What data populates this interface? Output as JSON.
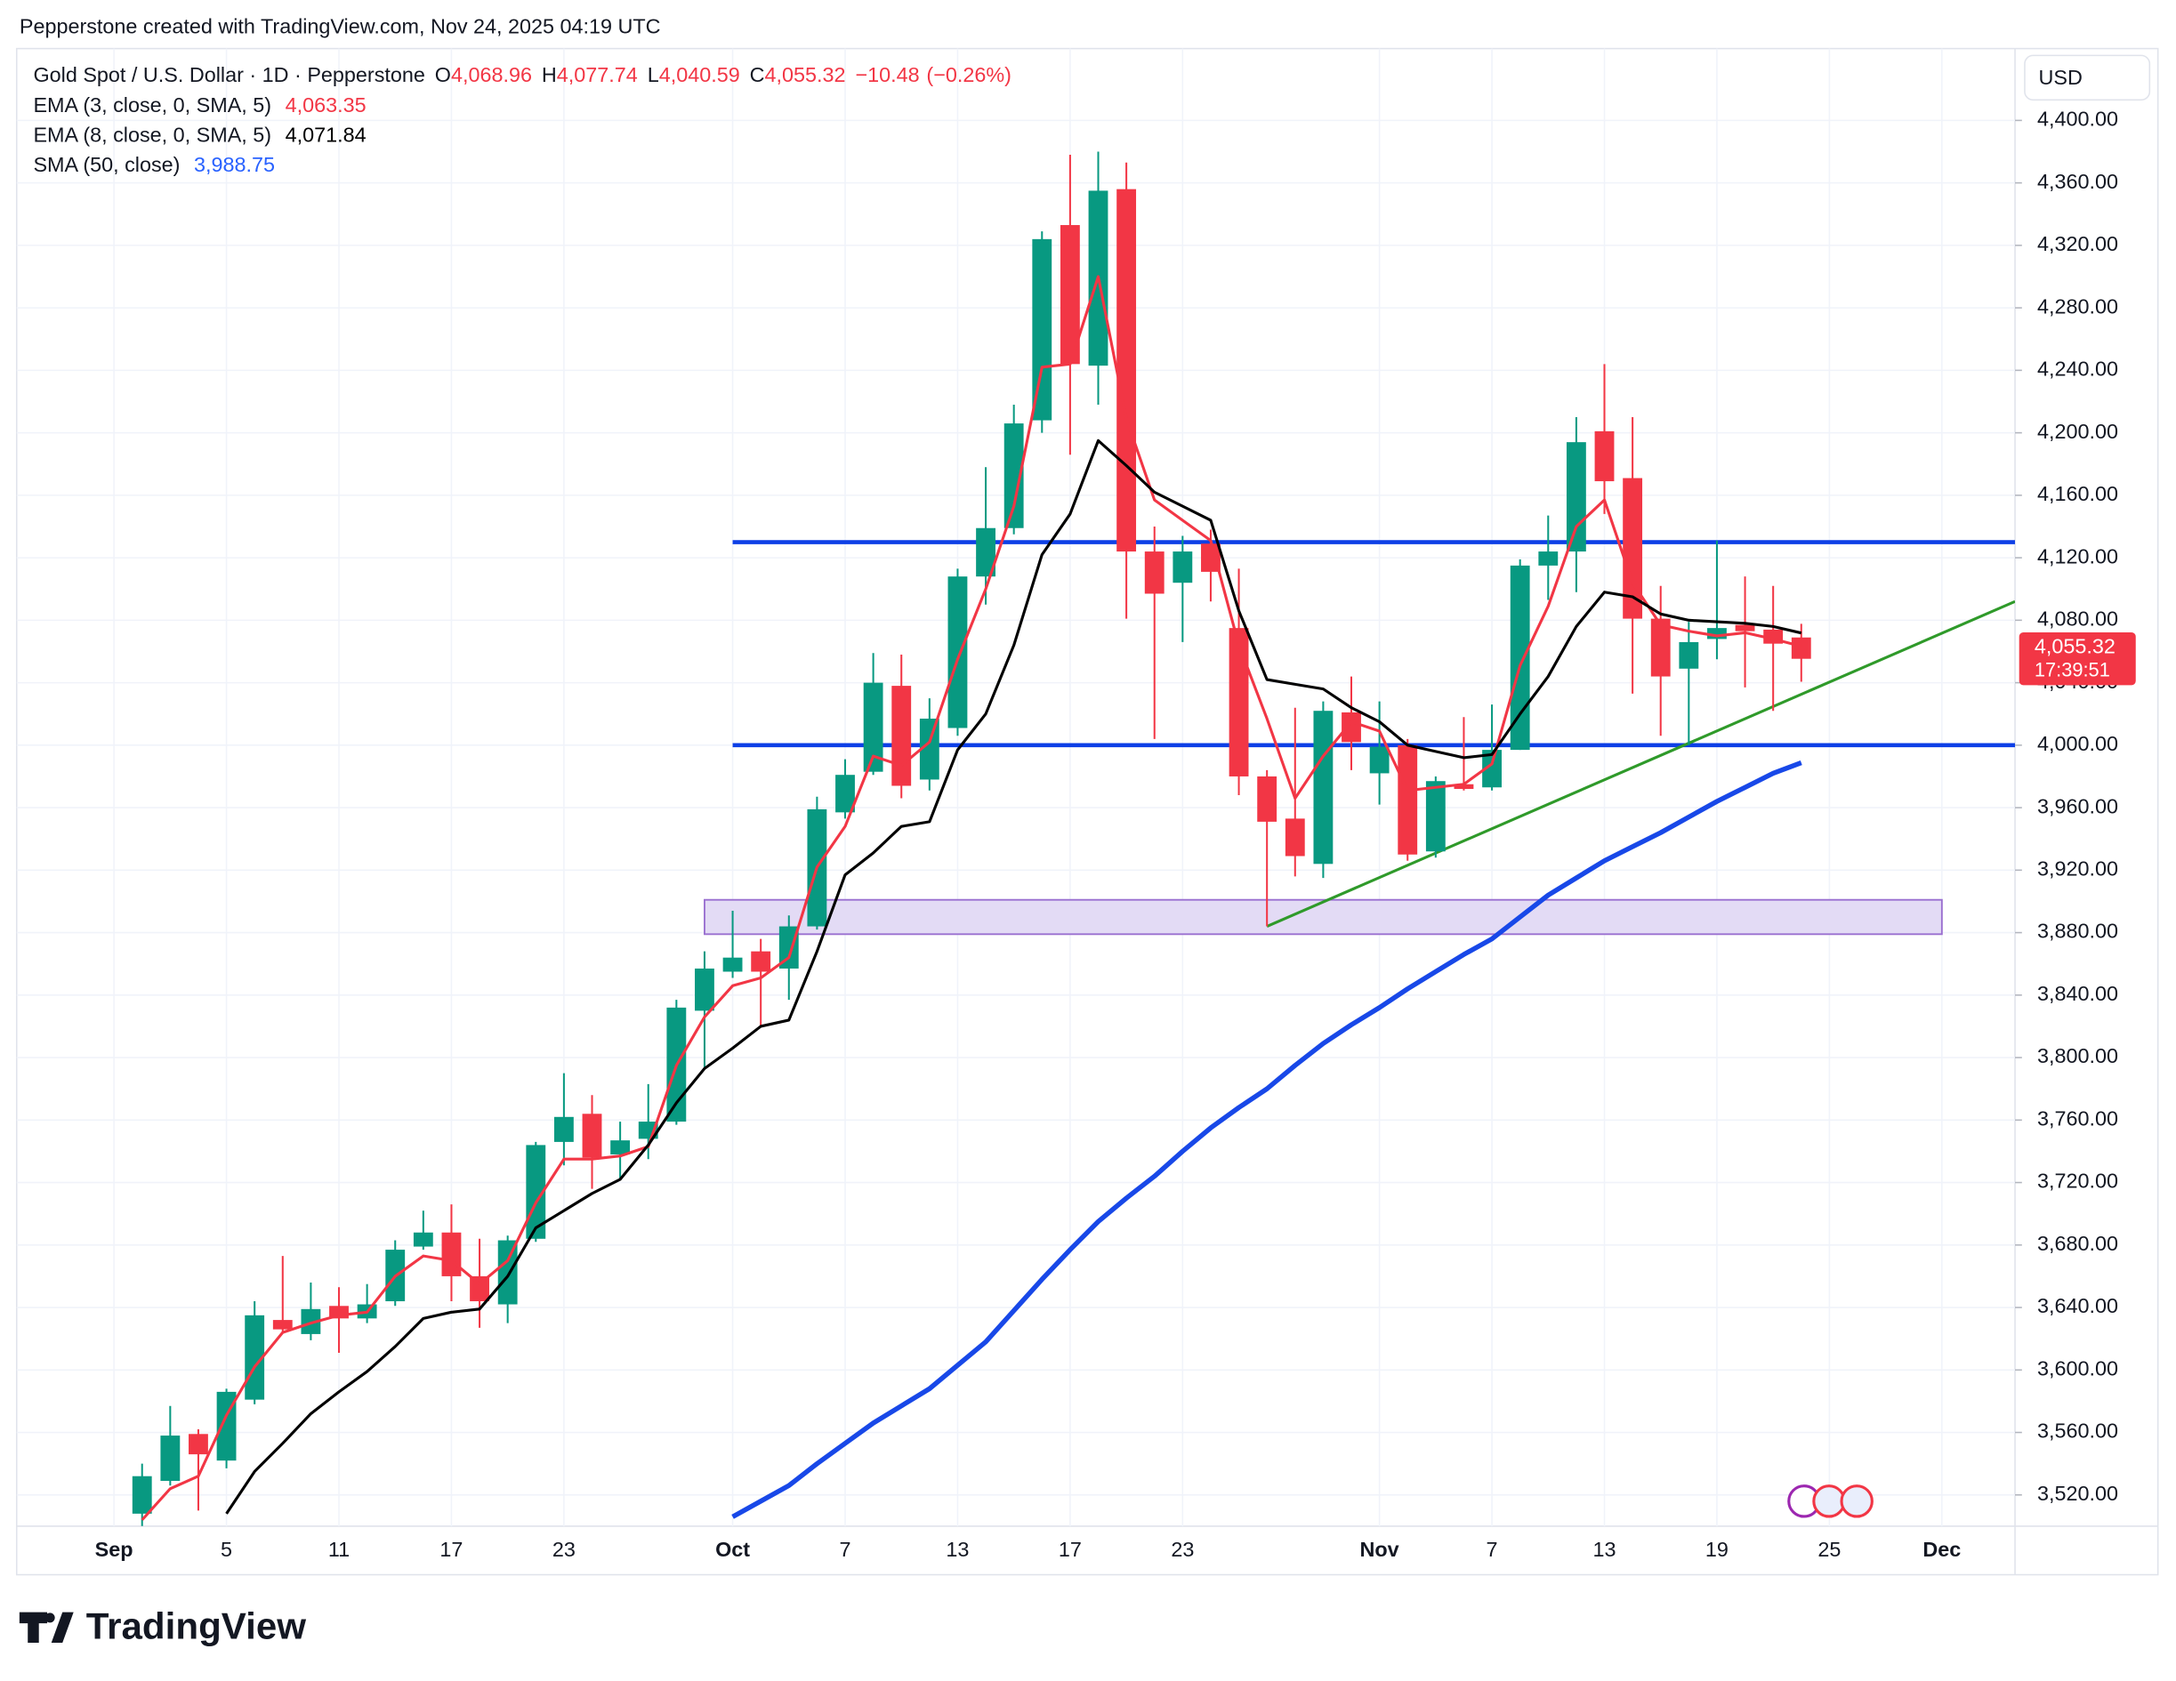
{
  "header": "Pepperstone created with TradingView.com, Nov 24, 2025 04:19 UTC",
  "footer": "TradingView",
  "chart_data": {
    "type": "candlestick",
    "title": "Gold Spot / U.S. Dollar · 1D · Pepperstone",
    "unit": "USD",
    "up_color": "#089981",
    "down_color": "#f23645",
    "ohlc_legend": [
      {
        "key": "O",
        "value": 4068.96,
        "label": "4,068.96"
      },
      {
        "key": "H",
        "value": 4077.74,
        "label": "4,077.74"
      },
      {
        "key": "L",
        "value": 4040.59,
        "label": "4,040.59"
      },
      {
        "key": "C",
        "value": 4055.32,
        "label": "4,055.32"
      }
    ],
    "change": {
      "value": -10.48,
      "label": "−10.48"
    },
    "change_pct": {
      "value": -0.26,
      "label": "(−0.26%)"
    },
    "categories": [
      null,
      null,
      null,
      null,
      null,
      null,
      null,
      null,
      null,
      null,
      null,
      null,
      null,
      null,
      null,
      null,
      null,
      null,
      null,
      null,
      null,
      null,
      null,
      null,
      null,
      null,
      null,
      null,
      null,
      null,
      null,
      null,
      null,
      null,
      null,
      null,
      null,
      null,
      null,
      null,
      null,
      null,
      null,
      null,
      null,
      null,
      null,
      null,
      null,
      null,
      null,
      null,
      null,
      null,
      null,
      null,
      null,
      null,
      null,
      null
    ],
    "open": [
      3508,
      3529,
      3559,
      3542,
      3581,
      3632,
      3623,
      3641,
      3633,
      3644,
      3679,
      3688,
      3660,
      3642,
      3684,
      3746,
      3764,
      3738,
      3748,
      3759,
      3830,
      3855,
      3868,
      3857,
      3884,
      3957,
      3983,
      4038,
      3978,
      4011,
      4108,
      4139,
      4208,
      4333,
      4243,
      4356,
      4124,
      4104,
      4129,
      4075,
      3980,
      3953,
      3924,
      4021,
      3982,
      4000,
      3932,
      3975,
      3973,
      3997,
      4115,
      4124,
      4201,
      4171,
      4081,
      4049,
      4068,
      4077,
      4074,
      4068.96
    ],
    "high": [
      3540,
      3577,
      3562,
      3588,
      3644,
      3673,
      3656,
      3653,
      3655,
      3683,
      3702,
      3706,
      3684,
      3686,
      3746,
      3790,
      3776,
      3759,
      3783,
      3837,
      3868,
      3894,
      3876,
      3891,
      3967,
      3991,
      4059,
      4058,
      4030,
      4113,
      4178,
      4218,
      4329,
      4378,
      4380,
      4373,
      4140,
      4134,
      4138,
      4113,
      3984,
      4024,
      4028,
      4044,
      4028,
      4004,
      3980,
      4018,
      4026,
      4119,
      4147,
      4210,
      4244,
      4210,
      4102,
      4079,
      4131,
      4108,
      4102,
      4077.74
    ],
    "low": [
      3500,
      3526,
      3510,
      3537,
      3578,
      3624,
      3619,
      3611,
      3630,
      3641,
      3677,
      3644,
      3627,
      3630,
      3682,
      3731,
      3716,
      3722,
      3735,
      3757,
      3793,
      3851,
      3820,
      3837,
      3882,
      3953,
      3981,
      3966,
      3971,
      4006,
      4090,
      4135,
      4200,
      4186,
      4218,
      4081,
      4004,
      4066,
      4092,
      3968,
      3884,
      3916,
      3915,
      3984,
      3962,
      3926,
      3928,
      3971,
      3971,
      3997,
      4093,
      4098,
      4148,
      4033,
      4006,
      4000,
      4055,
      4037,
      4022,
      4040.59
    ],
    "close": [
      3532,
      3558,
      3546,
      3586,
      3635,
      3626,
      3639,
      3633,
      3642,
      3677,
      3688,
      3660,
      3644,
      3683,
      3744,
      3762,
      3736,
      3747,
      3759,
      3832,
      3857,
      3864,
      3855,
      3884,
      3959,
      3981,
      4040,
      3974,
      4017,
      4108,
      4139,
      4206,
      4324,
      4244,
      4355,
      4124,
      4097,
      4124,
      4111,
      3980,
      3951,
      3929,
      4022,
      4002,
      3999,
      3930,
      3977,
      3972,
      3997,
      4115,
      4124,
      4194,
      4169,
      4081,
      4044,
      4066,
      4075,
      4073,
      4065,
      4055.32
    ],
    "series": [
      {
        "name": "EMA (3, close, 0, SMA, 5)",
        "color": "#f23645",
        "width": 2,
        "last": {
          "value": 4063.35,
          "label": "4,063.35"
        },
        "values": [
          3504,
          3524,
          3532,
          3571,
          3602,
          3624,
          3630,
          3635,
          3637,
          3660,
          3673,
          3670,
          3655,
          3670,
          3707,
          3735,
          3735,
          3737,
          3743,
          3795,
          3826,
          3846,
          3851,
          3864,
          3922,
          3948,
          3993,
          3987,
          4002,
          4055,
          4100,
          4153,
          4242,
          4244,
          4300,
          4209,
          4157,
          4144,
          4131,
          4064,
          4017,
          3966,
          3993,
          4015,
          4009,
          3971,
          3973,
          3975,
          3988,
          4051,
          4089,
          4140,
          4157,
          4104,
          4077,
          4073,
          4070,
          4072,
          4068,
          4063.35
        ]
      },
      {
        "name": "EMA (8, close, 0, SMA, 5)",
        "color": "#000000",
        "width": 2,
        "last": {
          "value": 4071.84,
          "label": "4,071.84"
        },
        "values": [
          null,
          null,
          null,
          3508,
          3535,
          3553,
          3572,
          3586,
          3599,
          3615,
          3633,
          3637,
          3639,
          3660,
          3691,
          3702,
          3713,
          3722,
          3744,
          3771,
          3793,
          3806,
          3820,
          3824,
          3868,
          3917,
          3931,
          3948,
          3951,
          3997,
          4020,
          4064,
          4122,
          4148,
          4195,
          4179,
          4162,
          4153,
          4144,
          4086,
          4042,
          4039,
          4036,
          4024,
          4015,
          4000,
          3996,
          3992,
          3994,
          4020,
          4044,
          4076,
          4098,
          4095,
          4084,
          4080,
          4079,
          4078,
          4076,
          4071.84
        ]
      },
      {
        "name": "SMA (50, close)",
        "color": "#1848e8",
        "width": 3.5,
        "last": {
          "value": 3988.75,
          "label": "3,988.75"
        },
        "values": [
          null,
          null,
          null,
          null,
          null,
          null,
          null,
          null,
          null,
          null,
          null,
          null,
          null,
          null,
          null,
          null,
          null,
          null,
          null,
          null,
          null,
          3506,
          3516,
          3526,
          3540,
          3553,
          3566,
          3577,
          3588,
          3603,
          3618,
          3638,
          3658,
          3677,
          3695,
          3710,
          3724,
          3740,
          3755,
          3768,
          3780,
          3795,
          3809,
          3821,
          3832,
          3844,
          3855,
          3866,
          3876,
          3890,
          3904,
          3915,
          3926,
          3935,
          3944,
          3954,
          3964,
          3973,
          3982,
          3988.75
        ]
      }
    ],
    "levels": [
      4130,
      4000
    ],
    "level_color": "#0d3fe6",
    "zone": [
      3879,
      3901
    ],
    "zone_color": "#e3dbf5",
    "zone_stroke": "#9a6fd0",
    "trendline": [
      3884,
      4092
    ],
    "trendline_color": "#2f9a2a",
    "price_tag": {
      "value": 4055.32,
      "label": "4,055.32",
      "countdown": "17:39:51"
    },
    "xlim": [
      -4.46,
      66.6
    ],
    "xticks": [
      {
        "value": -1,
        "label": "Sep"
      },
      {
        "value": 3,
        "label": "5"
      },
      {
        "value": 7,
        "label": "11"
      },
      {
        "value": 11,
        "label": "17"
      },
      {
        "value": 15,
        "label": "23"
      },
      {
        "value": 21,
        "label": "Oct"
      },
      {
        "value": 25,
        "label": "7"
      },
      {
        "value": 29,
        "label": "13"
      },
      {
        "value": 33,
        "label": "17"
      },
      {
        "value": 37,
        "label": "23"
      },
      {
        "value": 44,
        "label": "Nov"
      },
      {
        "value": 48,
        "label": "7"
      },
      {
        "value": 52,
        "label": "13"
      },
      {
        "value": 56,
        "label": "19"
      },
      {
        "value": 60,
        "label": "25"
      },
      {
        "value": 64,
        "label": "Dec"
      }
    ],
    "ylim": [
      3500,
      4446
    ],
    "yticks": [
      {
        "value": 3520,
        "label": "3,520.00"
      },
      {
        "value": 3560,
        "label": "3,560.00"
      },
      {
        "value": 3600,
        "label": "3,600.00"
      },
      {
        "value": 3640,
        "label": "3,640.00"
      },
      {
        "value": 3680,
        "label": "3,680.00"
      },
      {
        "value": 3720,
        "label": "3,720.00"
      },
      {
        "value": 3760,
        "label": "3,760.00"
      },
      {
        "value": 3800,
        "label": "3,800.00"
      },
      {
        "value": 3840,
        "label": "3,840.00"
      },
      {
        "value": 3880,
        "label": "3,880.00"
      },
      {
        "value": 3920,
        "label": "3,920.00"
      },
      {
        "value": 3960,
        "label": "3,960.00"
      },
      {
        "value": 4000,
        "label": "4,000.00"
      },
      {
        "value": 4040,
        "label": "4,040.00"
      },
      {
        "value": 4080,
        "label": "4,080.00"
      },
      {
        "value": 4120,
        "label": "4,120.00"
      },
      {
        "value": 4160,
        "label": "4,160.00"
      },
      {
        "value": 4200,
        "label": "4,200.00"
      },
      {
        "value": 4240,
        "label": "4,240.00"
      },
      {
        "value": 4280,
        "label": "4,280.00"
      },
      {
        "value": 4320,
        "label": "4,320.00"
      },
      {
        "value": 4360,
        "label": "4,360.00"
      },
      {
        "value": 4400,
        "label": "4,400.00"
      }
    ],
    "grid": true
  }
}
